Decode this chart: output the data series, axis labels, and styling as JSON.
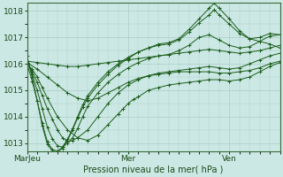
{
  "title": "Pression niveau de la mer( hPa )",
  "ylabel_ticks": [
    1013,
    1014,
    1015,
    1016,
    1017,
    1018
  ],
  "ylim": [
    1012.7,
    1018.3
  ],
  "xlim": [
    0,
    100
  ],
  "xtick_positions": [
    0,
    40,
    80
  ],
  "xtick_labels": [
    "MarJeu",
    "Mer",
    "Ven"
  ],
  "bg_color": "#cce8e4",
  "grid_color": "#aaccc8",
  "line_color": "#1a5c1a",
  "lines": [
    {
      "x": [
        0,
        4,
        8,
        12,
        16,
        20,
        24,
        28,
        32,
        36,
        40,
        44,
        48,
        52,
        56,
        60,
        64,
        68,
        72,
        76,
        80,
        84,
        88,
        92,
        96,
        100
      ],
      "y": [
        1016.1,
        1016.05,
        1016.0,
        1015.95,
        1015.9,
        1015.9,
        1015.95,
        1016.0,
        1016.05,
        1016.1,
        1016.15,
        1016.2,
        1016.25,
        1016.3,
        1016.35,
        1016.4,
        1016.45,
        1016.5,
        1016.55,
        1016.5,
        1016.45,
        1016.4,
        1016.45,
        1016.5,
        1016.6,
        1016.7
      ]
    },
    {
      "x": [
        0,
        4,
        8,
        12,
        16,
        20,
        24,
        28,
        32,
        36,
        40,
        44,
        48,
        52,
        56,
        60,
        64,
        68,
        72,
        76,
        80,
        84,
        88,
        92,
        96,
        100
      ],
      "y": [
        1016.05,
        1015.8,
        1015.5,
        1015.2,
        1014.9,
        1014.7,
        1014.6,
        1014.7,
        1014.9,
        1015.1,
        1015.3,
        1015.45,
        1015.55,
        1015.6,
        1015.65,
        1015.7,
        1015.7,
        1015.7,
        1015.7,
        1015.65,
        1015.65,
        1015.7,
        1015.75,
        1015.85,
        1016.0,
        1016.1
      ]
    },
    {
      "x": [
        0,
        2,
        4,
        6,
        8,
        12,
        16,
        20,
        24,
        28,
        32,
        36,
        38,
        40,
        42,
        44,
        48,
        52,
        56,
        60,
        64,
        68,
        72,
        76,
        80,
        84,
        88,
        92,
        96,
        100
      ],
      "y": [
        1016.0,
        1015.8,
        1015.5,
        1015.1,
        1014.7,
        1014.0,
        1013.5,
        1013.2,
        1013.1,
        1013.3,
        1013.7,
        1014.1,
        1014.3,
        1014.5,
        1014.65,
        1014.75,
        1015.0,
        1015.1,
        1015.2,
        1015.25,
        1015.3,
        1015.35,
        1015.4,
        1015.4,
        1015.35,
        1015.4,
        1015.5,
        1015.7,
        1015.9,
        1016.05
      ]
    },
    {
      "x": [
        0,
        2,
        4,
        6,
        8,
        10,
        12,
        14,
        16,
        18,
        20,
        24,
        28,
        32,
        36,
        40,
        44,
        48,
        52,
        56,
        60,
        64,
        68,
        72,
        76,
        80,
        84,
        88,
        92,
        96,
        100
      ],
      "y": [
        1016.05,
        1015.7,
        1015.3,
        1014.8,
        1014.3,
        1013.9,
        1013.5,
        1013.2,
        1013.05,
        1013.1,
        1013.2,
        1013.5,
        1014.0,
        1014.5,
        1014.9,
        1015.2,
        1015.4,
        1015.55,
        1015.65,
        1015.7,
        1015.75,
        1015.8,
        1015.85,
        1015.9,
        1015.85,
        1015.8,
        1015.85,
        1016.0,
        1016.15,
        1016.3,
        1016.4
      ]
    },
    {
      "x": [
        0,
        2,
        4,
        6,
        8,
        10,
        12,
        14,
        16,
        18,
        20,
        22,
        24,
        28,
        32,
        36,
        40,
        44,
        48,
        52,
        56,
        60,
        64,
        68,
        72,
        76,
        80,
        84,
        88,
        92,
        96,
        100
      ],
      "y": [
        1016.1,
        1015.6,
        1015.0,
        1014.3,
        1013.6,
        1013.15,
        1012.9,
        1012.85,
        1013.0,
        1013.2,
        1013.55,
        1014.0,
        1014.4,
        1014.9,
        1015.3,
        1015.6,
        1015.85,
        1016.05,
        1016.2,
        1016.3,
        1016.35,
        1016.5,
        1016.7,
        1017.0,
        1017.1,
        1016.9,
        1016.7,
        1016.6,
        1016.65,
        1016.85,
        1017.05,
        1017.1
      ]
    },
    {
      "x": [
        0,
        2,
        4,
        6,
        8,
        10,
        12,
        14,
        16,
        18,
        20,
        22,
        24,
        28,
        32,
        36,
        40,
        44,
        48,
        52,
        56,
        60,
        64,
        68,
        72,
        74,
        76,
        80,
        84,
        88,
        92,
        96,
        100
      ],
      "y": [
        1016.0,
        1015.35,
        1014.6,
        1013.75,
        1013.05,
        1012.75,
        1012.7,
        1012.85,
        1013.15,
        1013.55,
        1014.0,
        1014.45,
        1014.8,
        1015.3,
        1015.7,
        1016.0,
        1016.25,
        1016.45,
        1016.6,
        1016.7,
        1016.75,
        1016.9,
        1017.2,
        1017.55,
        1017.85,
        1018.05,
        1017.85,
        1017.5,
        1017.15,
        1016.95,
        1017.0,
        1017.15,
        1017.1
      ]
    },
    {
      "x": [
        0,
        2,
        4,
        6,
        8,
        10,
        12,
        14,
        16,
        18,
        20,
        22,
        24,
        28,
        32,
        36,
        40,
        44,
        48,
        52,
        56,
        60,
        64,
        68,
        72,
        74,
        76,
        80,
        84,
        88,
        92,
        96,
        100
      ],
      "y": [
        1016.3,
        1015.5,
        1014.6,
        1013.65,
        1012.95,
        1012.7,
        1012.65,
        1012.8,
        1013.1,
        1013.5,
        1013.95,
        1014.35,
        1014.7,
        1015.2,
        1015.6,
        1015.95,
        1016.2,
        1016.45,
        1016.6,
        1016.75,
        1016.8,
        1016.95,
        1017.3,
        1017.7,
        1018.1,
        1018.3,
        1018.1,
        1017.7,
        1017.25,
        1016.95,
        1016.85,
        1016.75,
        1016.6
      ]
    }
  ]
}
